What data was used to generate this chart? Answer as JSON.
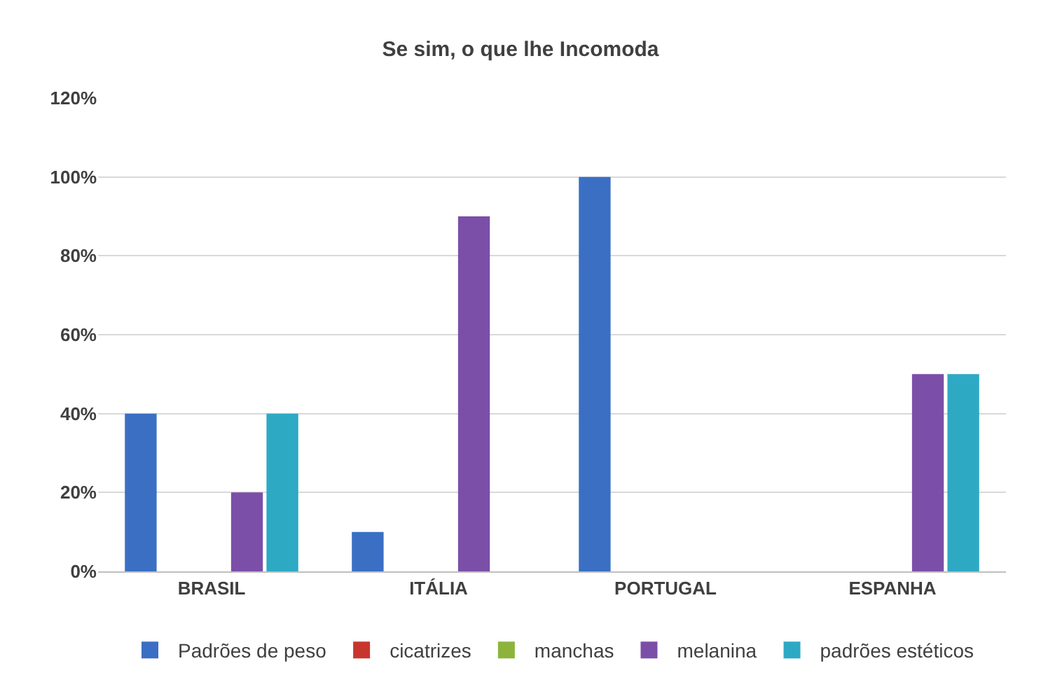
{
  "chart_data": {
    "type": "bar",
    "title": "Se sim, o que lhe Incomoda",
    "categories": [
      "BRASIL",
      "ITÁLIA",
      "PORTUGAL",
      "ESPANHA"
    ],
    "series": [
      {
        "name": "Padrões de peso",
        "color": "#3a6fc4",
        "values": [
          40,
          10,
          100,
          0
        ]
      },
      {
        "name": "cicatrizes",
        "color": "#c8352f",
        "values": [
          0,
          0,
          0,
          0
        ]
      },
      {
        "name": "manchas",
        "color": "#8cb43c",
        "values": [
          0,
          0,
          0,
          0
        ]
      },
      {
        "name": "melanina",
        "color": "#7b4fa8",
        "values": [
          20,
          90,
          0,
          50
        ]
      },
      {
        "name": "padrões estéticos",
        "color": "#2ea9c4",
        "values": [
          40,
          0,
          0,
          50
        ]
      }
    ],
    "ylim": [
      0,
      120
    ],
    "yticks": [
      {
        "value": 0,
        "label": "0%"
      },
      {
        "value": 20,
        "label": "20%"
      },
      {
        "value": 40,
        "label": "40%"
      },
      {
        "value": 60,
        "label": "60%"
      },
      {
        "value": 80,
        "label": "80%"
      },
      {
        "value": 100,
        "label": "100%"
      },
      {
        "value": 120,
        "label": "120%"
      }
    ],
    "grid": "y",
    "legend": "bottom"
  }
}
